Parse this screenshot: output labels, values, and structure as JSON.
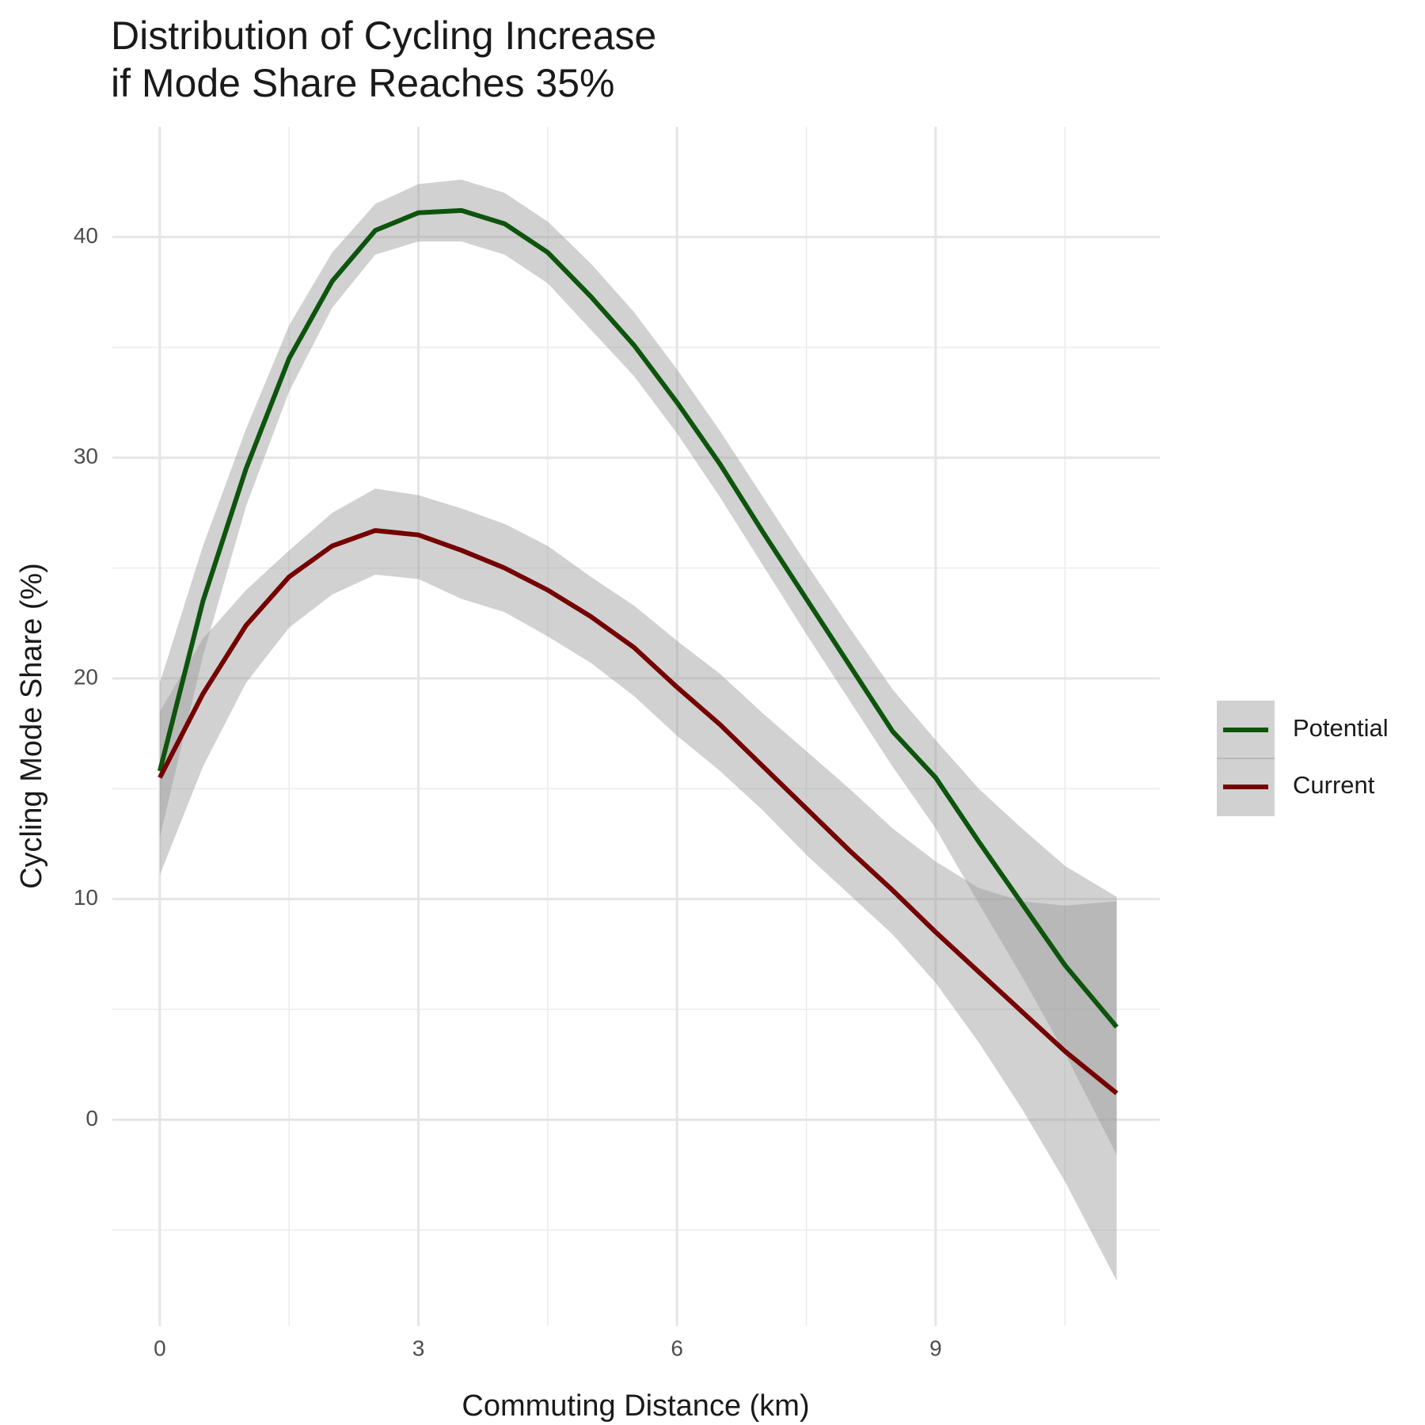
{
  "chart_data": {
    "type": "line",
    "title_lines": [
      "Distribution of Cycling Increase",
      "if Mode Share Reaches 35%"
    ],
    "x_label": "Commuting Distance (km)",
    "y_label": "Cycling Mode Share (%)",
    "x": [
      0,
      0.5,
      1,
      1.5,
      2,
      2.5,
      3,
      3.5,
      4,
      4.5,
      5,
      5.5,
      6,
      6.5,
      7,
      7.5,
      8,
      8.5,
      9,
      9.5,
      10,
      10.5,
      11.1
    ],
    "series": [
      {
        "name": "Potential",
        "color": "#0d540d",
        "values": [
          15.8,
          23.5,
          29.5,
          34.5,
          38,
          40.3,
          41.1,
          41.2,
          40.6,
          39.3,
          37.3,
          35.1,
          32.5,
          29.7,
          26.6,
          23.6,
          20.6,
          17.6,
          15.5,
          12.6,
          9.8,
          7.0,
          4.2
        ],
        "lower": [
          12.8,
          21,
          27.8,
          33,
          36.8,
          39.2,
          39.8,
          39.8,
          39.2,
          37.9,
          35.8,
          33.7,
          31.1,
          28.2,
          25.1,
          22,
          19,
          16,
          13.2,
          9.8,
          6.5,
          3,
          -1.6
        ],
        "upper": [
          19.8,
          26,
          31.3,
          36,
          39.3,
          41.5,
          42.4,
          42.6,
          42,
          40.7,
          38.8,
          36.6,
          34,
          31.2,
          28.2,
          25.2,
          22.3,
          19.5,
          17.2,
          15,
          13.2,
          11.5,
          10.1
        ]
      },
      {
        "name": "Current",
        "color": "#750000",
        "values": [
          15.5,
          19.3,
          22.4,
          24.6,
          26,
          26.7,
          26.5,
          25.8,
          25,
          24,
          22.8,
          21.4,
          19.6,
          17.9,
          16,
          14.1,
          12.2,
          10.4,
          8.5,
          6.7,
          4.9,
          3.1,
          1.2
        ],
        "lower": [
          11.1,
          16,
          19.8,
          22.3,
          23.8,
          24.7,
          24.5,
          23.6,
          23,
          21.9,
          20.7,
          19.2,
          17.4,
          15.8,
          14,
          12,
          10.2,
          8.4,
          6.2,
          3.5,
          0.5,
          -2.8,
          -7.3
        ],
        "upper": [
          18.5,
          21.8,
          24,
          25.8,
          27.5,
          28.6,
          28.3,
          27.7,
          27,
          26,
          24.6,
          23.3,
          21.7,
          20.2,
          18.4,
          16.7,
          15,
          13.2,
          11.7,
          10.5,
          9.9,
          9.7,
          9.9
        ]
      }
    ],
    "band_color": "#999999",
    "xlim": [
      -0.55,
      11.6
    ],
    "ylim": [
      -9.35,
      45
    ],
    "xticks": [
      0,
      3,
      6,
      9
    ],
    "yticks": [
      0,
      10,
      20,
      30,
      40
    ],
    "xminor": [
      1.5,
      4.5,
      7.5,
      10.5
    ],
    "yminor": [
      -5,
      5,
      15,
      25,
      35
    ],
    "grid": true,
    "legend": "right"
  }
}
